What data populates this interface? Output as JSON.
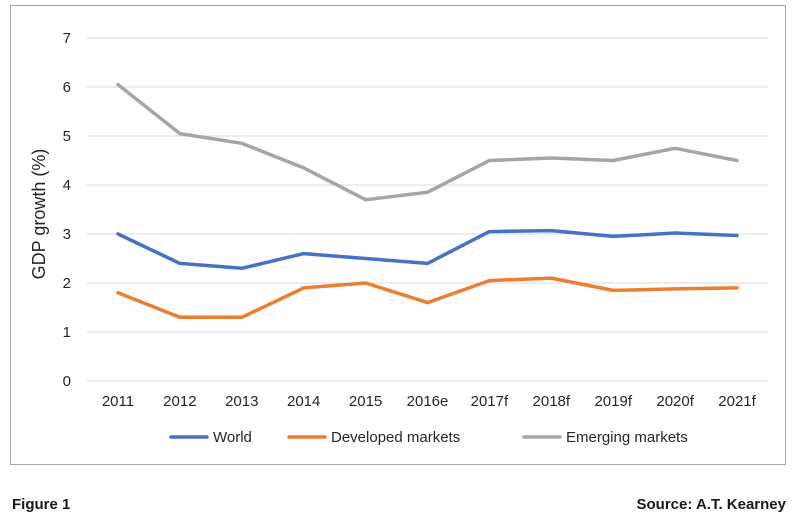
{
  "chart_data": {
    "type": "line",
    "categories": [
      "2011",
      "2012",
      "2013",
      "2014",
      "2015",
      "2016e",
      "2017f",
      "2018f",
      "2019f",
      "2020f",
      "2021f"
    ],
    "series": [
      {
        "name": "World",
        "color": "#4472c4",
        "values": [
          3.0,
          2.4,
          2.3,
          2.6,
          2.5,
          2.4,
          3.05,
          3.07,
          2.95,
          3.02,
          2.97
        ]
      },
      {
        "name": "Developed markets",
        "color": "#ed7d31",
        "values": [
          1.8,
          1.3,
          1.3,
          1.9,
          2.0,
          1.6,
          2.05,
          2.1,
          1.85,
          1.88,
          1.9
        ]
      },
      {
        "name": "Emerging markets",
        "color": "#a5a5a5",
        "values": [
          6.05,
          5.05,
          4.85,
          4.35,
          3.7,
          3.85,
          4.5,
          4.55,
          4.5,
          4.75,
          4.5
        ]
      }
    ],
    "ylabel": "GDP growth (%)",
    "xlabel": "",
    "ylim": [
      0,
      7
    ],
    "yticks": [
      0,
      1,
      2,
      3,
      4,
      5,
      6,
      7
    ],
    "grid": true,
    "legend_position": "bottom"
  },
  "caption": {
    "figure_label": "Figure 1",
    "source": "Source: A.T. Kearney"
  }
}
